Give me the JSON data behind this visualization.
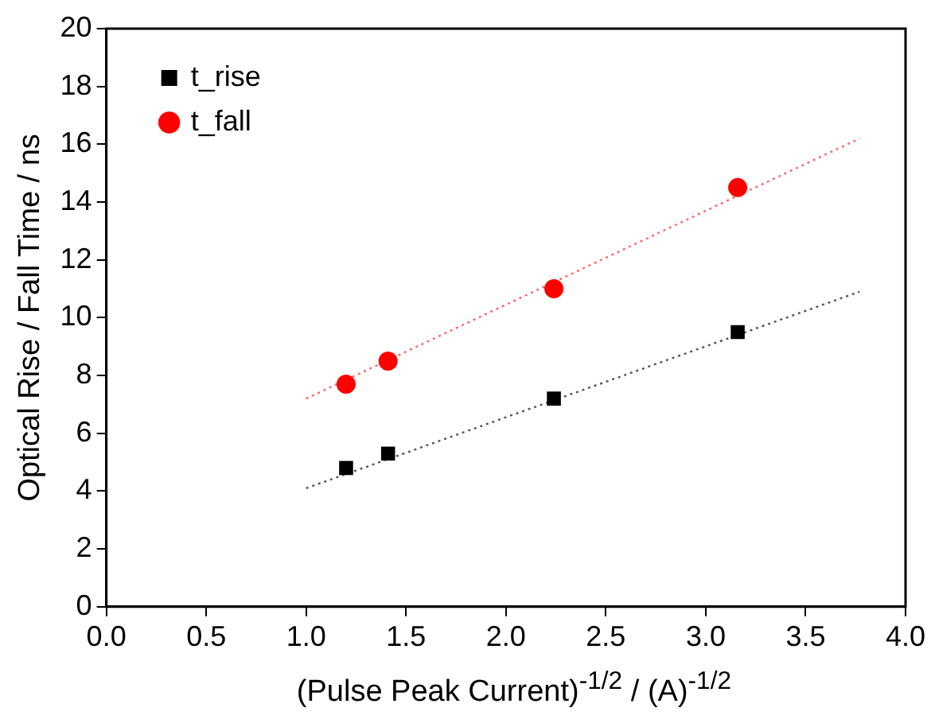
{
  "chart_data": {
    "type": "scatter",
    "xlabel": "(Pulse Peak Current)$^{-1/2}$ / (A)$^{-1/2}$",
    "ylabel": "Optical Rise / Fall Time / ns",
    "xlim": [
      0,
      4
    ],
    "xticks": [
      {
        "value": 0,
        "label": "0.0"
      },
      {
        "value": 0.5,
        "label": "0.5"
      },
      {
        "value": 1,
        "label": "1.0"
      },
      {
        "value": 1.5,
        "label": "1.5"
      },
      {
        "value": 2,
        "label": "2.0"
      },
      {
        "value": 2.5,
        "label": "2.5"
      },
      {
        "value": 3,
        "label": "3.0"
      },
      {
        "value": 3.5,
        "label": "3.5"
      },
      {
        "value": 4,
        "label": "4.0"
      }
    ],
    "ylim": [
      0,
      20
    ],
    "yticks": [
      0,
      2,
      4,
      6,
      8,
      10,
      12,
      14,
      16,
      18,
      20
    ],
    "grid": false,
    "legend": "top left",
    "series": [
      {
        "name": "t_rise",
        "color": "#000000",
        "marker": "square",
        "x": [
          1.2,
          1.41,
          2.24,
          3.16
        ],
        "values": [
          4.8,
          5.3,
          7.2,
          9.5
        ]
      },
      {
        "name": "t_fall",
        "color": "#ff0000",
        "marker": "circle",
        "x": [
          1.2,
          1.41,
          2.24,
          3.16
        ],
        "values": [
          7.7,
          8.5,
          11.0,
          14.5
        ]
      },
      {
        "type": "line",
        "color": "#555555",
        "line_style": "dotted",
        "marker": "none",
        "x": [
          1.0,
          3.77
        ],
        "values": [
          4.1,
          10.9
        ]
      },
      {
        "type": "line",
        "color": "#ff6666",
        "line_style": "dotted",
        "marker": "none",
        "x": [
          1.0,
          3.77
        ],
        "values": [
          7.2,
          16.2
        ]
      }
    ]
  }
}
